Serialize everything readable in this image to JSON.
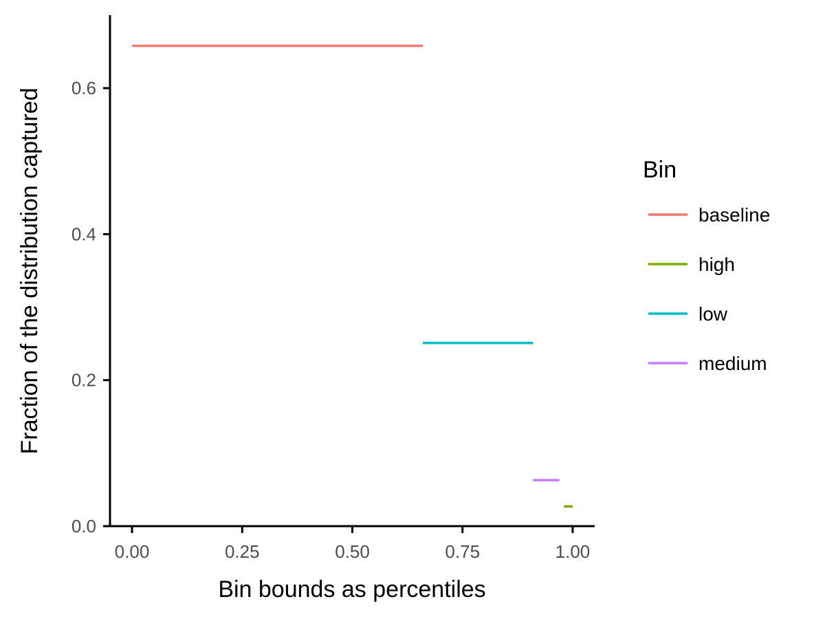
{
  "chart_data": {
    "type": "line",
    "xlabel": "Bin bounds as percentiles",
    "ylabel": "Fraction of the distribution captured",
    "xlim": [
      -0.05,
      1.05
    ],
    "ylim": [
      0,
      0.7
    ],
    "x_ticks": [
      0,
      0.25,
      0.5,
      0.75,
      1.0
    ],
    "x_tick_labels": [
      "0.00",
      "0.25",
      "0.50",
      "0.75",
      "1.00"
    ],
    "y_ticks": [
      0,
      0.2,
      0.4,
      0.6
    ],
    "y_tick_labels": [
      "0.0",
      "0.2",
      "0.4",
      "0.6"
    ],
    "grid": false,
    "legend": {
      "title": "Bin",
      "placement": "right"
    },
    "series": [
      {
        "name": "baseline",
        "color": "#F8766D",
        "x_start": 0.0,
        "x_end": 0.66,
        "y": 0.658
      },
      {
        "name": "high",
        "color": "#7CAE00",
        "x_start": 0.98,
        "x_end": 1.0,
        "y": 0.027
      },
      {
        "name": "low",
        "color": "#00BFC4",
        "x_start": 0.66,
        "x_end": 0.91,
        "y": 0.251
      },
      {
        "name": "medium",
        "color": "#C77CFF",
        "x_start": 0.91,
        "x_end": 0.97,
        "y": 0.063
      }
    ]
  }
}
